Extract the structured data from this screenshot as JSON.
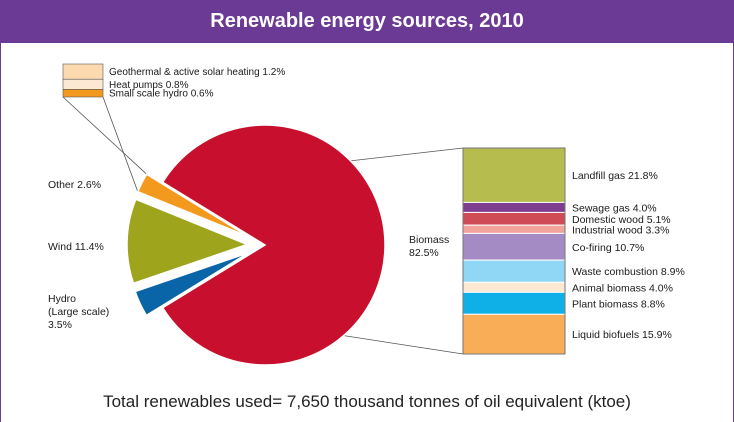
{
  "title": "Renewable energy sources, 2010",
  "footer": "Total renewables used= 7,650 thousand tonnes of oil equivalent (ktoe)",
  "colors": {
    "header": "#6b3a94",
    "biomass": "#c8102e",
    "other": "#f39a1e",
    "wind": "#9ea51d",
    "hydro": "#0a64a8"
  },
  "chart_data": [
    {
      "type": "pie",
      "slices": [
        {
          "label": "Biomass",
          "value": "82.5%",
          "percent": 82.5,
          "color": "#c8102e"
        },
        {
          "label": "Hydro",
          "sublabel": "(Large scale)",
          "value": "3.5%",
          "percent": 3.5,
          "color": "#0a64a8"
        },
        {
          "label": "Wind 11.4%",
          "percent": 11.4,
          "color": "#9ea51d"
        },
        {
          "label": "Other 2.6%",
          "percent": 2.6,
          "color": "#f39a1e"
        }
      ]
    },
    {
      "type": "bar",
      "stacked": true,
      "segments": [
        {
          "label": "Landfill gas 21.8%",
          "percent": 21.8,
          "color": "#b6bd4e"
        },
        {
          "label": "Sewage gas 4.0%",
          "percent": 4.0,
          "color": "#7e3d8f"
        },
        {
          "label": "Domestic wood 5.1%",
          "percent": 5.1,
          "color": "#cf4b55"
        },
        {
          "label": "Industrial wood 3.3%",
          "percent": 3.3,
          "color": "#f2a39b"
        },
        {
          "label": "Co-firing 10.7%",
          "percent": 10.7,
          "color": "#a58bc4"
        },
        {
          "label": "Waste combustion 8.9%",
          "percent": 8.9,
          "color": "#8fd7f5"
        },
        {
          "label": "Animal biomass 4.0%",
          "percent": 4.0,
          "color": "#fde8d4"
        },
        {
          "label": "Plant biomass 8.8%",
          "percent": 8.8,
          "color": "#0fb0e8"
        },
        {
          "label": "Liquid biofuels 15.9%",
          "percent": 15.9,
          "color": "#f9ad56"
        }
      ]
    },
    {
      "type": "bar",
      "stacked": true,
      "segments": [
        {
          "label": "Geothermal & active solar heating 1.2%",
          "percent": 1.2,
          "color": "#fcd9ae"
        },
        {
          "label": "Heat pumps 0.8%",
          "percent": 0.8,
          "color": "#fde8d4"
        },
        {
          "label": "Small scale hydro 0.6%",
          "percent": 0.6,
          "color": "#f39a1e"
        }
      ]
    }
  ]
}
